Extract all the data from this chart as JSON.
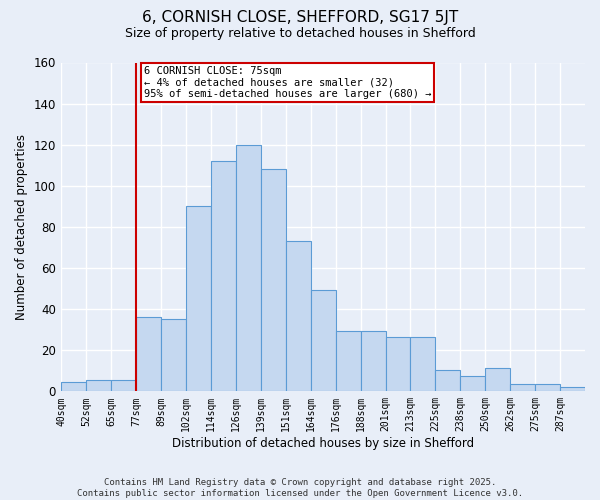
{
  "title_line1": "6, CORNISH CLOSE, SHEFFORD, SG17 5JT",
  "title_line2": "Size of property relative to detached houses in Shefford",
  "xlabel": "Distribution of detached houses by size in Shefford",
  "ylabel": "Number of detached properties",
  "bar_labels": [
    "40sqm",
    "52sqm",
    "65sqm",
    "77sqm",
    "89sqm",
    "102sqm",
    "114sqm",
    "126sqm",
    "139sqm",
    "151sqm",
    "164sqm",
    "176sqm",
    "188sqm",
    "201sqm",
    "213sqm",
    "225sqm",
    "238sqm",
    "250sqm",
    "262sqm",
    "275sqm",
    "287sqm"
  ],
  "bar_heights": [
    4,
    5,
    5,
    36,
    35,
    90,
    112,
    120,
    108,
    73,
    49,
    29,
    29,
    26,
    26,
    10,
    7,
    11,
    3,
    3,
    2
  ],
  "bar_color": "#c5d8f0",
  "bar_edge_color": "#5b9bd5",
  "vline_label": "77sqm",
  "vline_color": "#cc0000",
  "annotation_text": "6 CORNISH CLOSE: 75sqm\n← 4% of detached houses are smaller (32)\n95% of semi-detached houses are larger (680) →",
  "annotation_box_facecolor": "white",
  "annotation_box_edgecolor": "#cc0000",
  "ylim_max": 160,
  "ytick_interval": 20,
  "background_color": "#e8eef8",
  "grid_color": "#d0d8e8",
  "footer_text": "Contains HM Land Registry data © Crown copyright and database right 2025.\nContains public sector information licensed under the Open Government Licence v3.0."
}
